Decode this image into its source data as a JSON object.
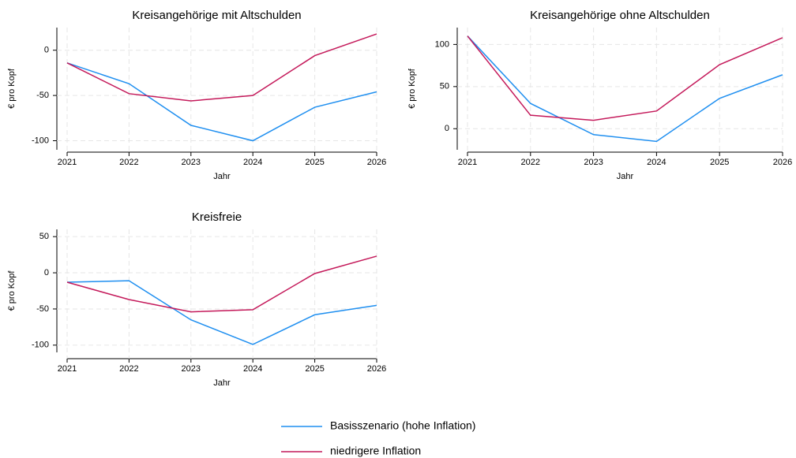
{
  "chart_data": [
    {
      "type": "line",
      "title": "Kreisangehörige mit Altschulden",
      "xlabel": "Jahr",
      "ylabel": "€ pro Kopf",
      "x": [
        2021,
        2022,
        2023,
        2024,
        2025,
        2026
      ],
      "xlim": [
        2021,
        2026
      ],
      "xticks": [
        2021,
        2022,
        2023,
        2024,
        2025,
        2026
      ],
      "ylim": [
        -110,
        25
      ],
      "yticks": [
        -100,
        -50,
        0
      ],
      "grid": true,
      "series": [
        {
          "color": "#1f8ff0",
          "values": [
            -14,
            -37,
            -83,
            -100,
            -63,
            -46
          ]
        },
        {
          "color": "#c4195a",
          "values": [
            -14,
            -48,
            -56,
            -50,
            -6,
            18
          ]
        }
      ]
    },
    {
      "type": "line",
      "title": "Kreisangehörige ohne Altschulden",
      "xlabel": "Jahr",
      "ylabel": "€ pro Kopf",
      "x": [
        2021,
        2022,
        2023,
        2024,
        2025,
        2026
      ],
      "xlim": [
        2021,
        2026
      ],
      "xticks": [
        2021,
        2022,
        2023,
        2024,
        2025,
        2026
      ],
      "ylim": [
        -25,
        120
      ],
      "yticks": [
        0,
        50,
        100
      ],
      "grid": true,
      "series": [
        {
          "color": "#1f8ff0",
          "values": [
            110,
            30,
            -7,
            -15,
            36,
            64
          ]
        },
        {
          "color": "#c4195a",
          "values": [
            110,
            16,
            10,
            21,
            76,
            108
          ]
        }
      ]
    },
    {
      "type": "line",
      "title": "Kreisfreie",
      "xlabel": "Jahr",
      "ylabel": "€ pro Kopf",
      "x": [
        2021,
        2022,
        2023,
        2024,
        2025,
        2026
      ],
      "xlim": [
        2021,
        2026
      ],
      "xticks": [
        2021,
        2022,
        2023,
        2024,
        2025,
        2026
      ],
      "ylim": [
        -110,
        60
      ],
      "yticks": [
        -100,
        -50,
        0,
        50
      ],
      "grid": true,
      "series": [
        {
          "color": "#1f8ff0",
          "values": [
            -13,
            -11,
            -65,
            -99,
            -58,
            -45
          ]
        },
        {
          "color": "#c4195a",
          "values": [
            -13,
            -37,
            -54,
            -51,
            -1,
            23
          ]
        }
      ]
    }
  ],
  "legend": [
    "Basisszenario (hohe Inflation)",
    "niedrigere Inflation"
  ]
}
